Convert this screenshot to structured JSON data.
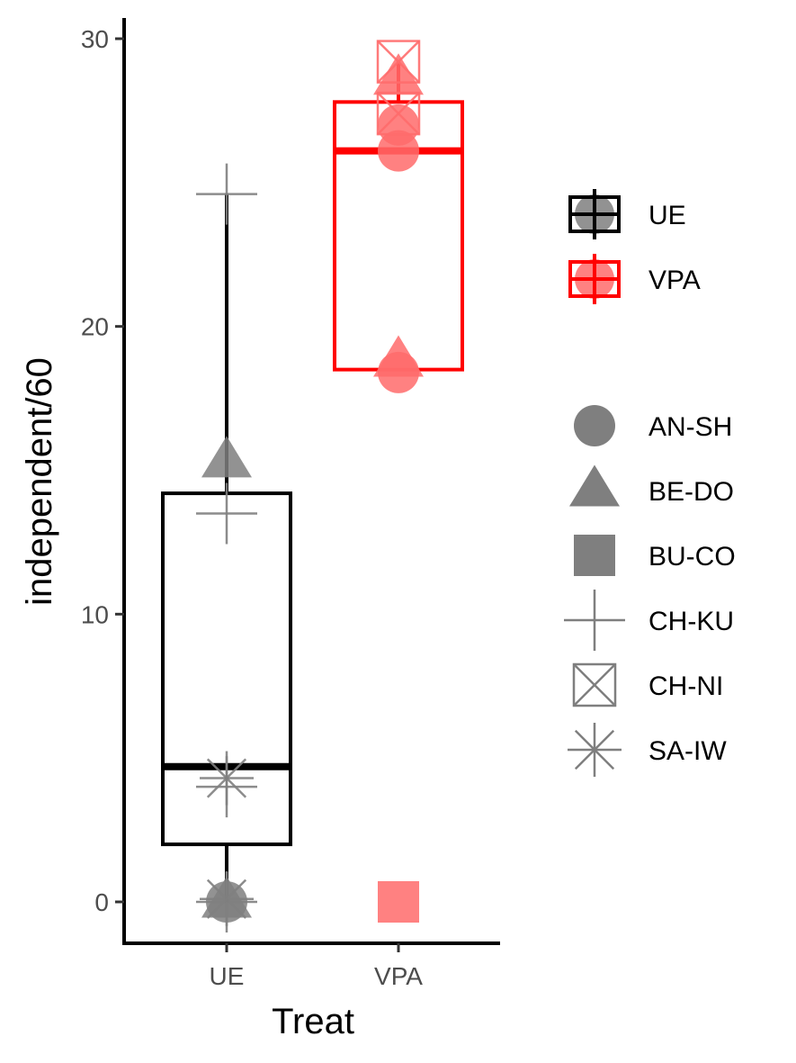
{
  "chart_data": {
    "type": "box",
    "xlabel": "Treat",
    "ylabel": "independent/60",
    "categories": [
      "UE",
      "VPA"
    ],
    "ylim": [
      -1.5,
      30.8
    ],
    "yticks": [
      0,
      10,
      20,
      30
    ],
    "ytick_labels": [
      "0",
      "10",
      "20",
      "30"
    ],
    "grid": false,
    "legend_position": "right",
    "boxes": [
      {
        "name": "UE",
        "color": "#000000",
        "q1": 2.0,
        "median": 4.7,
        "q3": 14.2,
        "whisker_low": 0.0,
        "whisker_high": 24.6
      },
      {
        "name": "VPA",
        "color": "#ff0000",
        "q1": 18.5,
        "median": 26.1,
        "q3": 27.8,
        "whisker_low": 18.5,
        "whisker_high": 29.2
      }
    ],
    "points": [
      {
        "group": "UE",
        "subject": "AN-SH",
        "value": 0
      },
      {
        "group": "UE",
        "subject": "BE-DO",
        "value": 15.3
      },
      {
        "group": "UE",
        "subject": "BE-DO",
        "value": 0
      },
      {
        "group": "UE",
        "subject": "CH-KU",
        "value": 24.6
      },
      {
        "group": "UE",
        "subject": "CH-KU",
        "value": 13.5
      },
      {
        "group": "UE",
        "subject": "CH-KU",
        "value": 4.0
      },
      {
        "group": "UE",
        "subject": "CH-KU",
        "value": 0
      },
      {
        "group": "UE",
        "subject": "SA-IW",
        "value": 4.3
      },
      {
        "group": "UE",
        "subject": "SA-IW",
        "value": 0.1
      },
      {
        "group": "VPA",
        "subject": "AN-SH",
        "value": 27.0
      },
      {
        "group": "VPA",
        "subject": "AN-SH",
        "value": 26.1
      },
      {
        "group": "VPA",
        "subject": "AN-SH",
        "value": 18.4
      },
      {
        "group": "VPA",
        "subject": "BE-DO",
        "value": 28.6
      },
      {
        "group": "VPA",
        "subject": "BE-DO",
        "value": 18.8
      },
      {
        "group": "VPA",
        "subject": "BU-CO",
        "value": 0
      },
      {
        "group": "VPA",
        "subject": "CH-NI",
        "value": 29.2
      },
      {
        "group": "VPA",
        "subject": "CH-NI",
        "value": 27.4
      }
    ],
    "legend_treat": [
      {
        "label": "UE",
        "color": "#000000"
      },
      {
        "label": "VPA",
        "color": "#ff0000"
      }
    ],
    "legend_subject": [
      {
        "label": "AN-SH",
        "shape": "circle"
      },
      {
        "label": "BE-DO",
        "shape": "triangle"
      },
      {
        "label": "BU-CO",
        "shape": "square"
      },
      {
        "label": "CH-KU",
        "shape": "plus"
      },
      {
        "label": "CH-NI",
        "shape": "boxed-x"
      },
      {
        "label": "SA-IW",
        "shape": "asterisk"
      }
    ]
  }
}
